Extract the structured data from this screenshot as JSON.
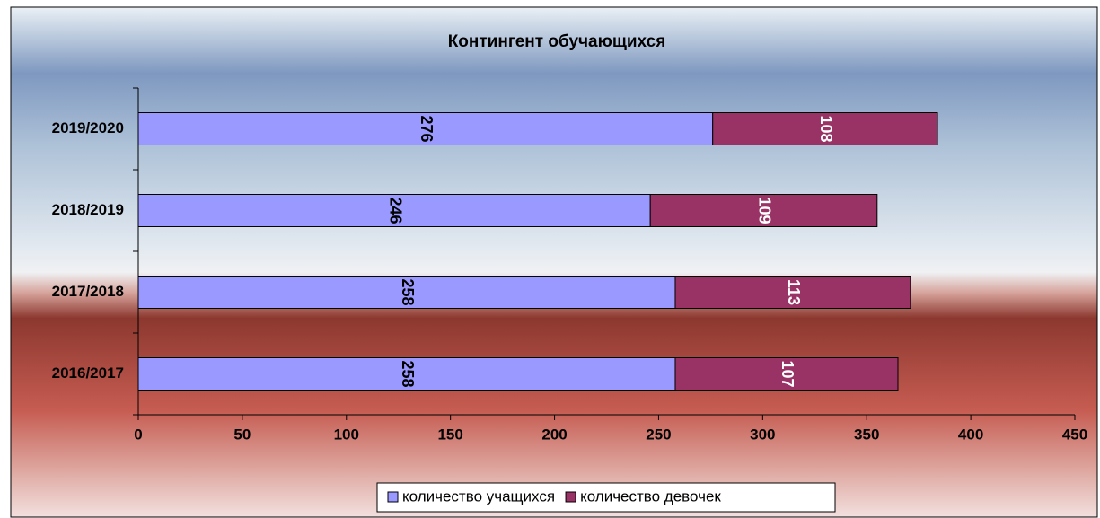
{
  "chart_data": {
    "type": "stacked_barh",
    "title": "Контингент обучающихся",
    "categories": [
      "2016/2017",
      "2017/2018",
      "2018/2019",
      "2019/2020"
    ],
    "series": [
      {
        "name": "количество учащихся",
        "color": "#9999ff",
        "values": [
          258,
          258,
          246,
          276
        ]
      },
      {
        "name": "количество девочек",
        "color": "#993366",
        "values": [
          107,
          113,
          109,
          108
        ]
      }
    ],
    "xlim": [
      0,
      450
    ],
    "xticks": [
      0,
      50,
      100,
      150,
      200,
      250,
      300,
      350,
      400,
      450
    ],
    "legend": "bottom"
  }
}
